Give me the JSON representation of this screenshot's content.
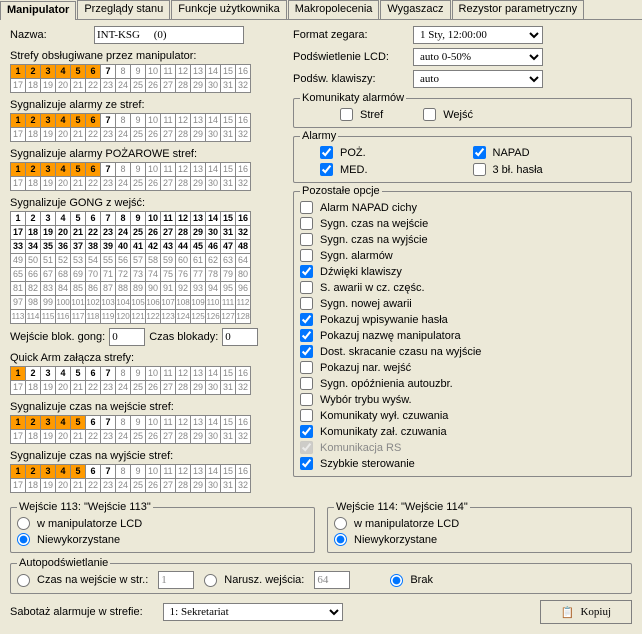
{
  "tabs": {
    "t0": "Manipulator",
    "t1": "Przeglądy stanu",
    "t2": "Funkcje użytkownika",
    "t3": "Makropolecenia",
    "t4": "Wygaszacz",
    "t5": "Rezystor parametryczny"
  },
  "name_label": "Nazwa:",
  "name_value": "INT-KSG     (0)",
  "sections": {
    "zones_served": "Strefy obsługiwane przez manipulator:",
    "signal_alarms": "Sygnalizuje alarmy ze stref:",
    "signal_fire": "Sygnalizuje alarmy POŻAROWE stref:",
    "signal_gong": "Sygnalizuje GONG z wejść:",
    "quick_arm": "Quick Arm załącza strefy:",
    "signal_entry": "Sygnalizuje czas na wejście stref:",
    "signal_exit": "Sygnalizuje czas na wyjście stref:"
  },
  "gong_block": {
    "label1": "Wejście blok. gong:",
    "val1": "0",
    "label2": "Czas blokady:",
    "val2": "0"
  },
  "right": {
    "clock_format_label": "Format zegara:",
    "clock_format": "1 Sty, 12:00:00",
    "lcd_label": "Podświetlenie LCD:",
    "lcd": "auto 0-50%",
    "keys_label": "Podśw. klawiszy:",
    "keys": "auto"
  },
  "alarm_msgs": {
    "legend": "Komunikaty alarmów",
    "zones": "Stref",
    "inputs": "Wejść"
  },
  "alarms": {
    "legend": "Alarmy",
    "poz": "POŻ.",
    "med": "MED.",
    "napad": "NAPAD",
    "bl": "3 bł. hasła"
  },
  "other": {
    "legend": "Pozostałe opcje",
    "o1": "Alarm NAPAD cichy",
    "o2": "Sygn. czas na wejście",
    "o3": "Sygn. czas na wyjście",
    "o4": "Sygn. alarmów",
    "o5": "Dźwięki klawiszy",
    "o6": "S. awarii w cz. częśc.",
    "o7": "Sygn. nowej awarii",
    "o8": "Pokazuj wpisywanie hasła",
    "o9": "Pokazuj nazwę manipulatora",
    "o10": "Dost. skracanie czasu na wyjście",
    "o11": "Pokazuj nar. wejść",
    "o12": "Sygn. opóźnienia autouzbr.",
    "o13": "Wybór trybu wyśw.",
    "o14": "Komunikaty wył. czuwania",
    "o15": "Komunikaty zał. czuwania",
    "o16": "Komunikacja RS",
    "o17": "Szybkie sterowanie"
  },
  "input113": {
    "legend": "Wejście 113: \"Wejście 113\"",
    "r1": "w manipulatorze LCD",
    "r2": "Niewykorzystane"
  },
  "input114": {
    "legend": "Wejście 114: \"Wejście 114\"",
    "r1": "w manipulatorze LCD",
    "r2": "Niewykorzystane"
  },
  "autolight": {
    "legend": "Autopodświetlanie",
    "r1": "Czas na wejście w str.:",
    "v1": "1",
    "r2": "Narusz. wejścia:",
    "v2": "64",
    "r3": "Brak"
  },
  "sabotage": {
    "label": "Sabotaż alarmuje w strefie:",
    "value": "1: Sekretariat"
  },
  "copy_btn": "Kopiuj",
  "zone_configs": {
    "served": {
      "rows": 2,
      "cols": 16,
      "selected": [
        1,
        2,
        3,
        4,
        5,
        6
      ],
      "active": [
        1,
        2,
        3,
        4,
        5,
        6,
        7
      ]
    },
    "alarms": {
      "rows": 2,
      "cols": 16,
      "selected": [
        1,
        2,
        3,
        4,
        5,
        6
      ],
      "active": [
        1,
        2,
        3,
        4,
        5,
        6,
        7
      ]
    },
    "fire": {
      "rows": 2,
      "cols": 16,
      "selected": [
        1,
        2,
        3,
        4,
        5,
        6
      ],
      "active": [
        1,
        2,
        3,
        4,
        5,
        6,
        7
      ]
    },
    "quickarm": {
      "rows": 2,
      "cols": 16,
      "selected": [
        1
      ],
      "active": [
        1,
        2,
        3,
        4,
        5,
        6,
        7
      ]
    },
    "entry": {
      "rows": 2,
      "cols": 16,
      "selected": [
        1,
        2,
        3,
        4,
        5
      ],
      "active": [
        1,
        2,
        3,
        4,
        5,
        6,
        7
      ]
    },
    "exit": {
      "rows": 2,
      "cols": 16,
      "selected": [
        1,
        2,
        3,
        4,
        5
      ],
      "active": [
        1,
        2,
        3,
        4,
        5,
        6,
        7
      ]
    }
  },
  "gong_grid": {
    "rows": 8,
    "cols": 16,
    "active": [
      1,
      2,
      3,
      4,
      5,
      6,
      7,
      8,
      9,
      10,
      11,
      12,
      13,
      14,
      15,
      16,
      17,
      18,
      19,
      20,
      21,
      22,
      23,
      24,
      25,
      26,
      27,
      28,
      29,
      30,
      31,
      32,
      33,
      34,
      35,
      36,
      37,
      38,
      39,
      40,
      41,
      42,
      43,
      44,
      45,
      46,
      47,
      48
    ]
  },
  "checked_options": [
    "o5",
    "o8",
    "o9",
    "o10",
    "o15",
    "o16",
    "o17"
  ],
  "alarm_checked": [
    "poz",
    "med",
    "napad"
  ]
}
